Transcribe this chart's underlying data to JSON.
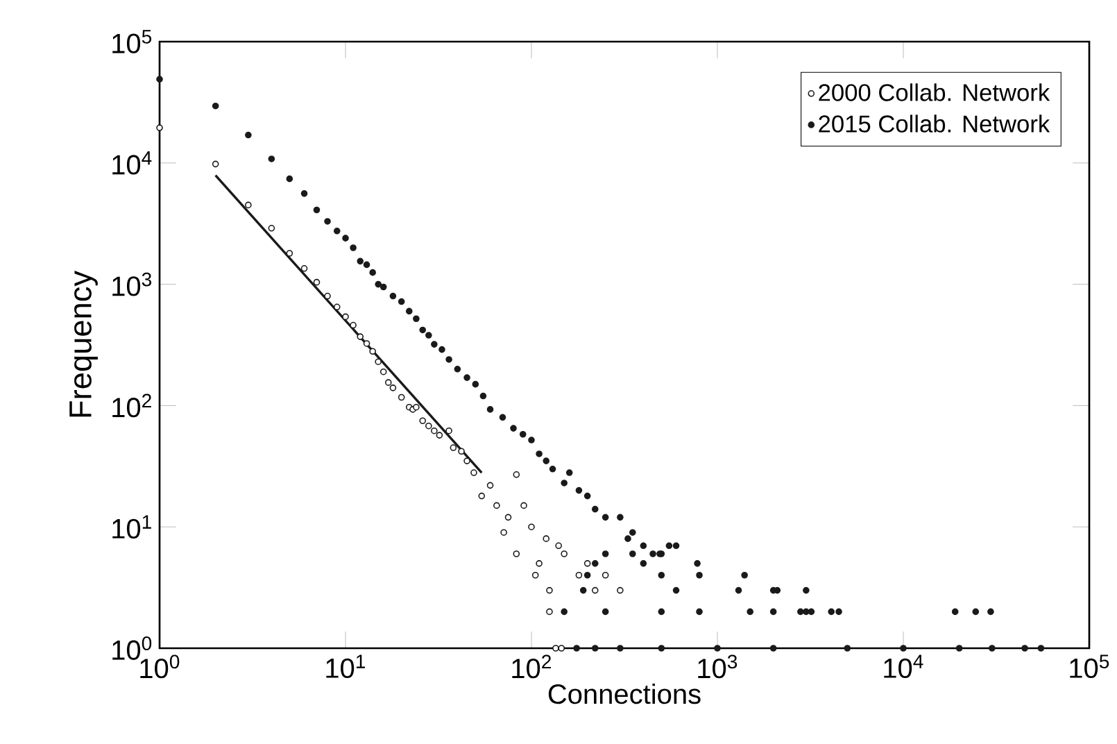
{
  "chart_data": {
    "type": "scatter",
    "xlabel": "Connections",
    "ylabel": "Frequency",
    "log": "xy",
    "grid": false,
    "legend": "top right",
    "xlim": [
      1,
      100000
    ],
    "ylim": [
      1,
      100000
    ],
    "xticks": [
      {
        "value": 1,
        "label": "10$^{0}$"
      },
      {
        "value": 10,
        "label": "10$^{1}$"
      },
      {
        "value": 100,
        "label": "10$^{2}$"
      },
      {
        "value": 1000,
        "label": "10$^{3}$"
      },
      {
        "value": 10000,
        "label": "10$^{4}$"
      },
      {
        "value": 100000,
        "label": "10$^{5}$"
      }
    ],
    "yticks": [
      {
        "value": 1,
        "label": "10$^{0}$"
      },
      {
        "value": 10,
        "label": "10$^{1}$"
      },
      {
        "value": 100,
        "label": "10$^{2}$"
      },
      {
        "value": 1000,
        "label": "10$^{3}$"
      },
      {
        "value": 10000,
        "label": "10$^{4}$"
      },
      {
        "value": 100000,
        "label": "10$^{5}$"
      }
    ],
    "series": [
      {
        "name": "2000 Collab. Network",
        "marker": "circle",
        "color": "#1a1a1a",
        "x": [
          1,
          2,
          3,
          4,
          5,
          6,
          7,
          8,
          9,
          10,
          11,
          12,
          13,
          14,
          15,
          16,
          17,
          18,
          20,
          22,
          23,
          24,
          26,
          28,
          30,
          32,
          36,
          38,
          42,
          45,
          49,
          54,
          60,
          65,
          71,
          75,
          83,
          91,
          100,
          83,
          105,
          110,
          125,
          125,
          135,
          145,
          150,
          180,
          200,
          220,
          250,
          300,
          120,
          140
        ],
        "values": [
          19500,
          9800,
          4500,
          2900,
          1800,
          1350,
          1040,
          800,
          650,
          540,
          460,
          370,
          325,
          280,
          230,
          190,
          155,
          140,
          117,
          97,
          93,
          97,
          75,
          68,
          62,
          57,
          62,
          45,
          42,
          35,
          28,
          18,
          22,
          15,
          9,
          12,
          27,
          15,
          10,
          6,
          4,
          5,
          3,
          2,
          1,
          1,
          6,
          4,
          5,
          3,
          4,
          3,
          8,
          7
        ]
      },
      {
        "name": "2015 Collab. Network",
        "marker": "circle",
        "color": "#1a1a1a",
        "x": [
          1,
          2,
          3,
          4,
          5,
          6,
          7,
          8,
          9,
          10,
          11,
          12,
          13,
          14,
          15,
          16,
          18,
          20,
          22,
          24,
          26,
          28,
          30,
          33,
          36,
          40,
          45,
          50,
          55,
          60,
          70,
          80,
          90,
          100,
          110,
          120,
          130,
          150,
          160,
          180,
          200,
          220,
          250,
          300,
          330,
          350,
          400,
          450,
          500,
          550,
          600,
          250,
          350,
          490,
          220,
          400,
          780,
          200,
          500,
          800,
          1400,
          190,
          600,
          1300,
          2000,
          2100,
          3000,
          150,
          250,
          500,
          800,
          1500,
          2000,
          2800,
          3000,
          3200,
          4100,
          4500,
          19000,
          24500,
          29500,
          175,
          220,
          300,
          500,
          1000,
          2000,
          5000,
          10000,
          20000,
          30000,
          45000,
          55000
        ],
        "values": [
          49000,
          29500,
          17000,
          10800,
          7400,
          5600,
          4100,
          3300,
          2750,
          2400,
          2000,
          1550,
          1450,
          1250,
          1000,
          950,
          800,
          720,
          600,
          520,
          420,
          380,
          320,
          290,
          240,
          200,
          170,
          150,
          120,
          93,
          80,
          65,
          58,
          52,
          40,
          35,
          30,
          23,
          28,
          20,
          18,
          14,
          12,
          12,
          8,
          9,
          7,
          6,
          6,
          7,
          7,
          6,
          6,
          6,
          5,
          5,
          5,
          4,
          4,
          4,
          4,
          3,
          3,
          3,
          3,
          3,
          3,
          2,
          2,
          2,
          2,
          2,
          2,
          2,
          2,
          2,
          2,
          2,
          2,
          2,
          2,
          1,
          1,
          1,
          1,
          1,
          1,
          1,
          1,
          1,
          1,
          1,
          1
        ]
      },
      {
        "type": "line",
        "marker": "none",
        "color": "#1a1a1a",
        "x": [
          2,
          54
        ],
        "values": [
          7900,
          28
        ]
      }
    ]
  }
}
